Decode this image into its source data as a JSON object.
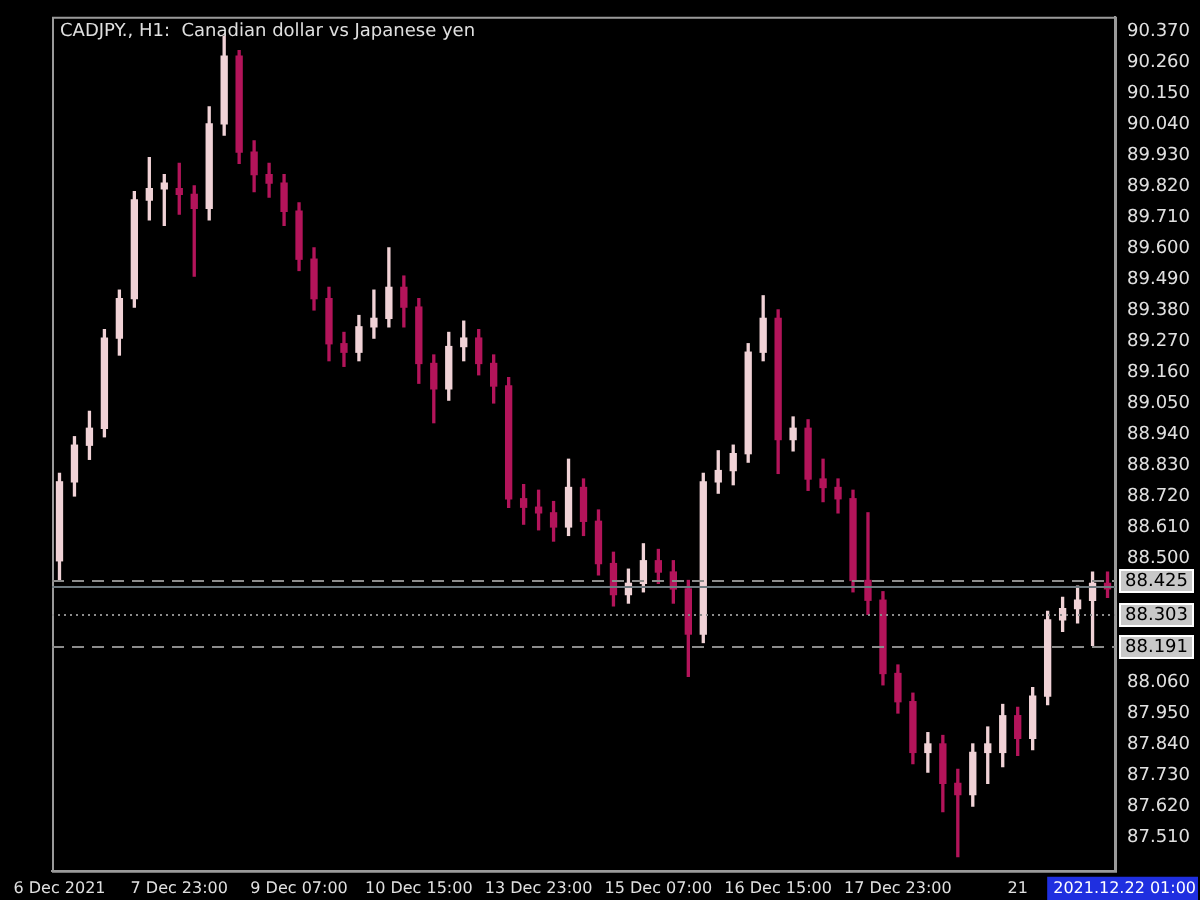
{
  "chart_data": {
    "type": "candlestick",
    "title": "CADJPY., H1:  Canadian dollar vs Japanese yen",
    "categories": [
      "6 Dec 2021",
      null,
      null,
      null,
      null,
      null,
      null,
      null,
      "7 Dec 23:00",
      null,
      null,
      null,
      null,
      null,
      null,
      null,
      "9 Dec 07:00",
      null,
      null,
      null,
      null,
      null,
      null,
      null,
      "10 Dec 15:00",
      null,
      null,
      null,
      null,
      null,
      null,
      null,
      "13 Dec 23:00",
      null,
      null,
      null,
      null,
      null,
      null,
      null,
      "15 Dec 07:00",
      null,
      null,
      null,
      null,
      null,
      null,
      null,
      "16 Dec 15:00",
      null,
      null,
      null,
      null,
      null,
      null,
      null,
      "17 Dec 23:00",
      null,
      null,
      null,
      null,
      null,
      null,
      null,
      "21",
      null,
      null,
      null,
      null,
      null,
      null
    ],
    "ohlc": [
      [
        88.49,
        88.8,
        88.42,
        88.77
      ],
      [
        88.77,
        88.93,
        88.72,
        88.9
      ],
      [
        88.9,
        89.02,
        88.85,
        88.96
      ],
      [
        88.96,
        89.31,
        88.93,
        89.28
      ],
      [
        89.28,
        89.45,
        89.22,
        89.42
      ],
      [
        89.42,
        89.8,
        89.39,
        89.77
      ],
      [
        89.77,
        89.92,
        89.7,
        89.81
      ],
      [
        89.81,
        89.86,
        89.68,
        89.83
      ],
      [
        89.81,
        89.9,
        89.72,
        89.79
      ],
      [
        89.79,
        89.82,
        89.5,
        89.74
      ],
      [
        89.74,
        90.1,
        89.7,
        90.04
      ],
      [
        90.04,
        90.35,
        90.0,
        90.28
      ],
      [
        90.28,
        90.3,
        89.9,
        89.94
      ],
      [
        89.94,
        89.98,
        89.8,
        89.86
      ],
      [
        89.86,
        89.9,
        89.78,
        89.83
      ],
      [
        89.83,
        89.86,
        89.68,
        89.73
      ],
      [
        89.73,
        89.76,
        89.52,
        89.56
      ],
      [
        89.56,
        89.6,
        89.38,
        89.42
      ],
      [
        89.42,
        89.46,
        89.2,
        89.26
      ],
      [
        89.26,
        89.3,
        89.18,
        89.23
      ],
      [
        89.23,
        89.36,
        89.2,
        89.32
      ],
      [
        89.32,
        89.45,
        89.28,
        89.35
      ],
      [
        89.35,
        89.6,
        89.32,
        89.46
      ],
      [
        89.46,
        89.5,
        89.32,
        89.39
      ],
      [
        89.39,
        89.42,
        89.12,
        89.19
      ],
      [
        89.19,
        89.22,
        88.98,
        89.1
      ],
      [
        89.1,
        89.3,
        89.06,
        89.25
      ],
      [
        89.25,
        89.34,
        89.2,
        89.28
      ],
      [
        89.28,
        89.31,
        89.15,
        89.19
      ],
      [
        89.19,
        89.22,
        89.05,
        89.11
      ],
      [
        89.11,
        89.14,
        88.68,
        88.71
      ],
      [
        88.71,
        88.76,
        88.62,
        88.68
      ],
      [
        88.68,
        88.74,
        88.6,
        88.66
      ],
      [
        88.66,
        88.7,
        88.56,
        88.61
      ],
      [
        88.61,
        88.85,
        88.58,
        88.75
      ],
      [
        88.75,
        88.78,
        88.58,
        88.63
      ],
      [
        88.63,
        88.67,
        88.44,
        88.48
      ],
      [
        88.48,
        88.52,
        88.33,
        88.37
      ],
      [
        88.37,
        88.46,
        88.34,
        88.41
      ],
      [
        88.41,
        88.55,
        88.38,
        88.49
      ],
      [
        88.49,
        88.53,
        88.41,
        88.45
      ],
      [
        88.45,
        88.49,
        88.34,
        88.39
      ],
      [
        88.39,
        88.42,
        88.08,
        88.23
      ],
      [
        88.23,
        88.8,
        88.2,
        88.77
      ],
      [
        88.77,
        88.88,
        88.73,
        88.81
      ],
      [
        88.81,
        88.9,
        88.76,
        88.87
      ],
      [
        88.87,
        89.26,
        88.84,
        89.23
      ],
      [
        89.23,
        89.43,
        89.2,
        89.35
      ],
      [
        89.35,
        89.38,
        88.8,
        88.92
      ],
      [
        88.92,
        89.0,
        88.88,
        88.96
      ],
      [
        88.96,
        88.99,
        88.74,
        88.78
      ],
      [
        88.78,
        88.85,
        88.7,
        88.75
      ],
      [
        88.75,
        88.78,
        88.66,
        88.71
      ],
      [
        88.71,
        88.74,
        88.38,
        88.42
      ],
      [
        88.42,
        88.66,
        88.3,
        88.35
      ],
      [
        88.35,
        88.38,
        88.05,
        88.09
      ],
      [
        88.09,
        88.12,
        87.95,
        87.99
      ],
      [
        87.99,
        88.02,
        87.77,
        87.81
      ],
      [
        87.81,
        87.88,
        87.74,
        87.84
      ],
      [
        87.84,
        87.87,
        87.6,
        87.7
      ],
      [
        87.7,
        87.75,
        87.44,
        87.66
      ],
      [
        87.66,
        87.84,
        87.62,
        87.81
      ],
      [
        87.81,
        87.9,
        87.7,
        87.84
      ],
      [
        87.81,
        87.98,
        87.76,
        87.94
      ],
      [
        87.94,
        87.97,
        87.8,
        87.86
      ],
      [
        87.86,
        88.04,
        87.82,
        88.01
      ],
      [
        88.01,
        88.31,
        87.98,
        88.28
      ],
      [
        88.28,
        88.36,
        88.24,
        88.32
      ],
      [
        88.32,
        88.4,
        88.27,
        88.35
      ],
      [
        88.35,
        88.45,
        88.19,
        88.41
      ],
      [
        88.41,
        88.45,
        88.36,
        88.39
      ]
    ],
    "colors": [
      "#f0d2d6",
      "#f0d2d6",
      "#f0d2d6",
      "#f0d2d6",
      "#f0d2d6",
      "#f0d2d6",
      "#f0d2d6",
      "#f0d2d6",
      "#b3145a",
      "#b3145a",
      "#f0d2d6",
      "#f0d2d6",
      "#b3145a",
      "#b3145a",
      "#b3145a",
      "#b3145a",
      "#b3145a",
      "#b3145a",
      "#b3145a",
      "#b3145a",
      "#f0d2d6",
      "#f0d2d6",
      "#f0d2d6",
      "#b3145a",
      "#b3145a",
      "#b3145a",
      "#f0d2d6",
      "#f0d2d6",
      "#b3145a",
      "#b3145a",
      "#b3145a",
      "#b3145a",
      "#b3145a",
      "#b3145a",
      "#f0d2d6",
      "#b3145a",
      "#b3145a",
      "#b3145a",
      "#f0d2d6",
      "#f0d2d6",
      "#b3145a",
      "#b3145a",
      "#b3145a",
      "#f0d2d6",
      "#f0d2d6",
      "#f0d2d6",
      "#f0d2d6",
      "#f0d2d6",
      "#b3145a",
      "#f0d2d6",
      "#b3145a",
      "#b3145a",
      "#b3145a",
      "#b3145a",
      "#b3145a",
      "#b3145a",
      "#b3145a",
      "#b3145a",
      "#f0d2d6",
      "#b3145a",
      "#b3145a",
      "#f0d2d6",
      "#f0d2d6",
      "#f0d2d6",
      "#b3145a",
      "#f0d2d6",
      "#f0d2d6",
      "#f0d2d6",
      "#f0d2d6",
      "#f0d2d6",
      "#b3145a"
    ],
    "ylim": [
      87.39,
      90.42
    ],
    "yticks": [
      {
        "value": 87.51,
        "label": "87.510"
      },
      {
        "value": 87.62,
        "label": "87.620"
      },
      {
        "value": 87.73,
        "label": "87.730"
      },
      {
        "value": 87.84,
        "label": "87.840"
      },
      {
        "value": 87.95,
        "label": "87.950"
      },
      {
        "value": 88.06,
        "label": "88.060"
      },
      {
        "value": 88.5,
        "label": "88.500"
      },
      {
        "value": 88.61,
        "label": "88.610"
      },
      {
        "value": 88.72,
        "label": "88.720"
      },
      {
        "value": 88.83,
        "label": "88.830"
      },
      {
        "value": 88.94,
        "label": "88.940"
      },
      {
        "value": 89.05,
        "label": "89.050"
      },
      {
        "value": 89.16,
        "label": "89.160"
      },
      {
        "value": 89.27,
        "label": "89.270"
      },
      {
        "value": 89.38,
        "label": "89.380"
      },
      {
        "value": 89.49,
        "label": "89.490"
      },
      {
        "value": 89.6,
        "label": "89.600"
      },
      {
        "value": 89.71,
        "label": "89.710"
      },
      {
        "value": 89.82,
        "label": "89.820"
      },
      {
        "value": 89.93,
        "label": "89.930"
      },
      {
        "value": 90.04,
        "label": "90.040"
      },
      {
        "value": 90.15,
        "label": "90.150"
      },
      {
        "value": 90.26,
        "label": "90.260"
      },
      {
        "value": 90.37,
        "label": "90.370"
      }
    ],
    "ref_lines": [
      {
        "axis": "y",
        "value": 88.425,
        "label": "88.425",
        "line_style": "dashed",
        "color": "#8c8c8c"
      },
      {
        "axis": "y",
        "value": 88.4,
        "line_style": "solid",
        "color": "#6e7a80"
      },
      {
        "axis": "y",
        "value": 88.303,
        "label": "88.303",
        "line_style": "dotted",
        "color": "#8c8c8c"
      },
      {
        "axis": "y",
        "value": 88.191,
        "label": "88.191",
        "line_style": "dashed",
        "color": "#8c8c8c"
      }
    ],
    "annotations": [
      "2021.12.22 01:00"
    ],
    "legend": false
  }
}
